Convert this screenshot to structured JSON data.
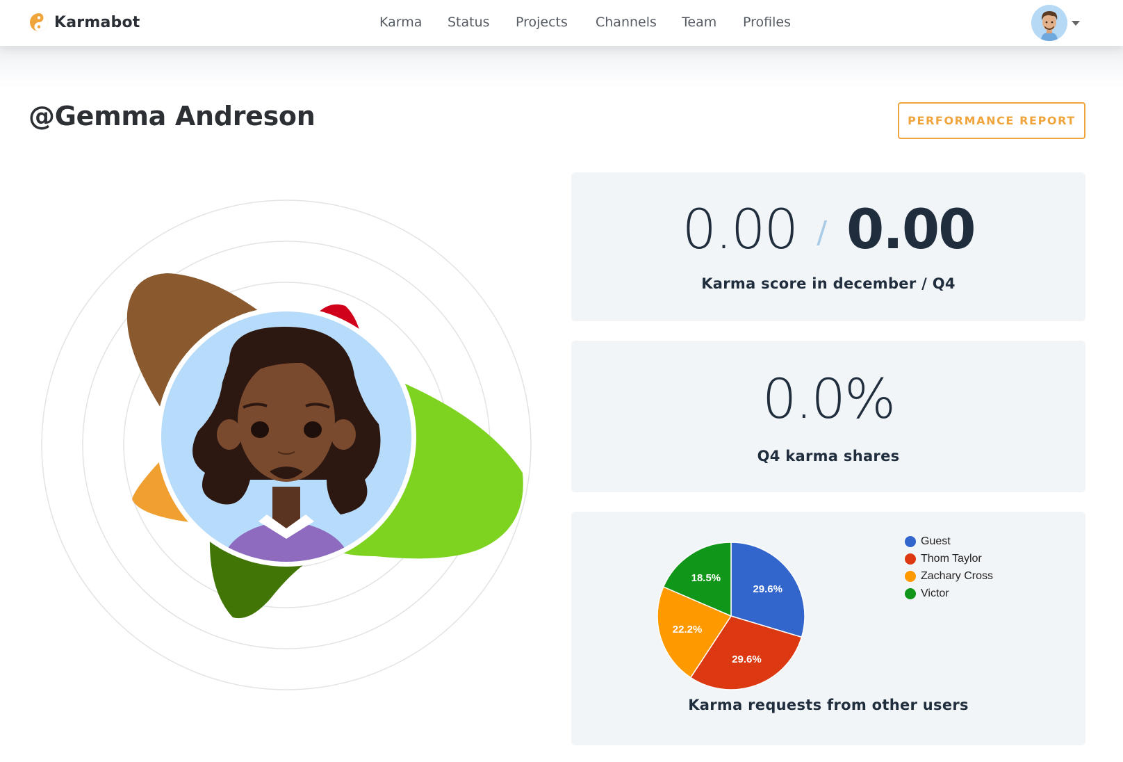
{
  "brand": {
    "name": "Karmabot",
    "accent": "#f0a43c"
  },
  "nav": {
    "links": [
      {
        "label": "Karma"
      },
      {
        "label": "Status"
      },
      {
        "label": "Projects"
      },
      {
        "label": "Channels"
      },
      {
        "label": "Team"
      },
      {
        "label": "Profiles"
      }
    ]
  },
  "header": {
    "title": "@Gemma Andreson",
    "report_button": "PERFORMANCE REPORT"
  },
  "score_card": {
    "monthly": "0.00",
    "separator": "/",
    "quarterly": "0.00",
    "caption": "Karma score in december / Q4"
  },
  "share_card": {
    "value": "0.0%",
    "caption": "Q4 karma shares"
  },
  "requests_card": {
    "caption": "Karma requests from other users"
  },
  "chart_data": {
    "type": "pie",
    "title": "",
    "categories": [
      "Guest",
      "Thom Taylor",
      "Zachary Cross",
      "Victor"
    ],
    "values": [
      29.6,
      29.6,
      22.2,
      18.5
    ],
    "labels": [
      "29.6%",
      "29.6%",
      "22.2%",
      "18.5%"
    ],
    "colors": [
      "#3366cc",
      "#dc3912",
      "#ff9900",
      "#109618"
    ],
    "legend_position": "right"
  }
}
